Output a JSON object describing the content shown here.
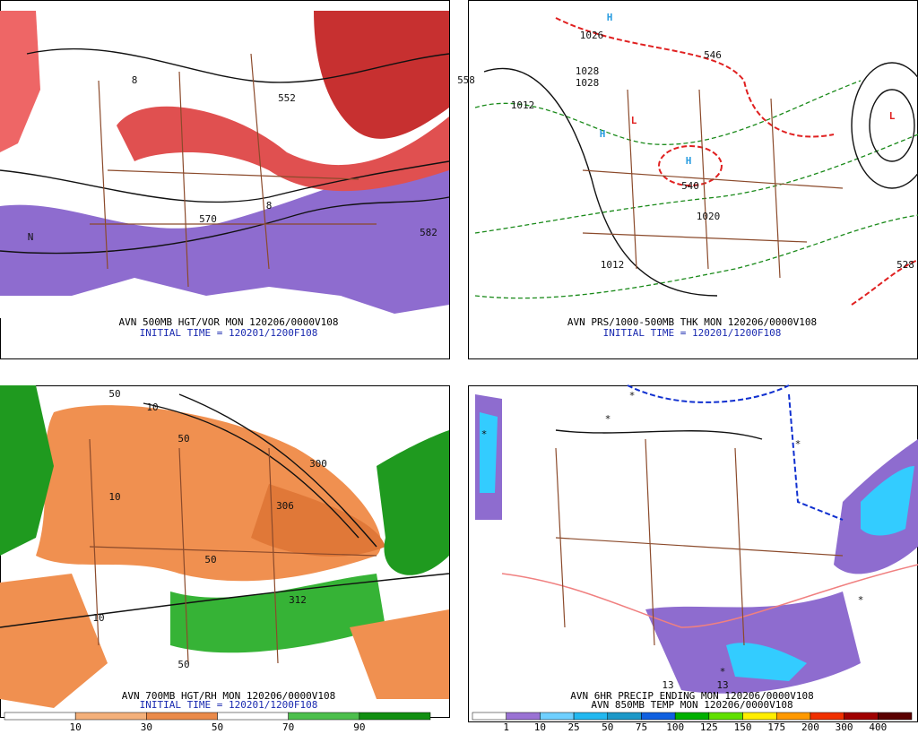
{
  "panels": [
    {
      "title": "AVN 500MB HGT/VOR MON 120206/0000V108",
      "subtitle": "INITIAL TIME = 120201/1200F108",
      "labels": [
        "570",
        "582",
        "558",
        "552",
        "N",
        "8",
        "8"
      ]
    },
    {
      "title": "AVN PRS/1000-500MB THK MON 120206/0000V108",
      "subtitle": "INITIAL TIME = 120201/1200F108",
      "labels": [
        "H",
        "L",
        "H",
        "H",
        "L",
        "1028",
        "1028",
        "1020",
        "1012",
        "1012",
        "1026",
        "540",
        "546",
        "528"
      ]
    },
    {
      "title": "AVN 700MB HGT/RH MON 120206/0000V108",
      "subtitle": "INITIAL TIME = 120201/1200F108",
      "labels": [
        "50",
        "50",
        "10",
        "10",
        "306",
        "312",
        "300",
        "50",
        "10",
        "50"
      ]
    },
    {
      "title": "AVN 6HR PRECIP ENDING MON 120206/0000V108",
      "subtitle": "AVN 850MB TEMP MON 120206/0000V108",
      "labels": [
        "*",
        "*",
        "*",
        "*",
        "*",
        "*",
        "13",
        "13"
      ]
    }
  ],
  "colorbars": [
    {
      "ticks": [
        10,
        30,
        50,
        70,
        90
      ]
    },
    {
      "ticks": [
        1,
        10,
        25,
        50,
        75,
        100,
        125,
        150,
        175,
        200,
        300,
        400
      ]
    }
  ]
}
